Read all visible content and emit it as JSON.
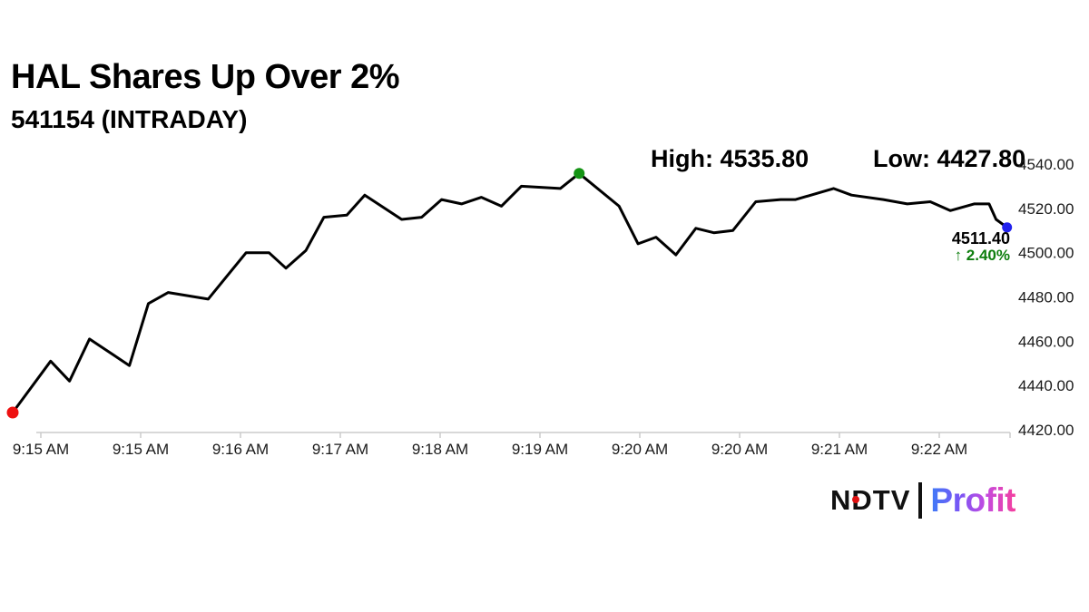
{
  "header": {
    "title": "HAL Shares Up Over 2%",
    "subtitle": "541154 (INTRADAY)"
  },
  "stats": {
    "high": {
      "label": "High:",
      "value": "4535.80"
    },
    "low": {
      "label": "Low:",
      "value": "4427.80"
    }
  },
  "quote": {
    "last_price": "4511.40",
    "change_arrow": "↑",
    "change_percent": "2.40%",
    "change_color": "#0e7e0e"
  },
  "chart_data": {
    "type": "line",
    "title": "HAL Shares Up Over 2%",
    "xlabel": "",
    "ylabel": "",
    "x_tick_labels": [
      "9:15 AM",
      "9:15 AM",
      "9:16 AM",
      "9:17 AM",
      "9:18 AM",
      "9:19 AM",
      "9:20 AM",
      "9:20 AM",
      "9:21 AM",
      "9:22 AM"
    ],
    "y_tick_values": [
      4540,
      4520,
      4500,
      4480,
      4460,
      4440,
      4420
    ],
    "y_tick_labels": [
      "4540.00",
      "4520.00",
      "4500.00",
      "4480.00",
      "4460.00",
      "4440.00",
      "4420.00"
    ],
    "ylim": [
      4420,
      4540
    ],
    "grid": false,
    "legend": false,
    "high": 4535.8,
    "low": 4427.8,
    "last": 4511.4,
    "change_percent": 2.4,
    "line_color": "#000000",
    "axis_color": "#cccccc",
    "series": [
      {
        "name": "541154 intraday price",
        "points": [
          [
            0.0,
            4427.8
          ],
          [
            0.038,
            4451
          ],
          [
            0.057,
            4442
          ],
          [
            0.077,
            4461
          ],
          [
            0.117,
            4449
          ],
          [
            0.136,
            4477
          ],
          [
            0.156,
            4482
          ],
          [
            0.196,
            4479
          ],
          [
            0.234,
            4500
          ],
          [
            0.257,
            4500
          ],
          [
            0.274,
            4493
          ],
          [
            0.294,
            4501
          ],
          [
            0.312,
            4516
          ],
          [
            0.335,
            4517
          ],
          [
            0.353,
            4526
          ],
          [
            0.39,
            4515
          ],
          [
            0.41,
            4516
          ],
          [
            0.43,
            4524
          ],
          [
            0.45,
            4522
          ],
          [
            0.47,
            4525
          ],
          [
            0.49,
            4521
          ],
          [
            0.51,
            4530
          ],
          [
            0.549,
            4529
          ],
          [
            0.568,
            4535.8
          ],
          [
            0.608,
            4521
          ],
          [
            0.627,
            4504
          ],
          [
            0.645,
            4507
          ],
          [
            0.665,
            4499
          ],
          [
            0.685,
            4511
          ],
          [
            0.703,
            4509
          ],
          [
            0.722,
            4510
          ],
          [
            0.745,
            4523
          ],
          [
            0.77,
            4524
          ],
          [
            0.785,
            4524
          ],
          [
            0.823,
            4529
          ],
          [
            0.841,
            4526
          ],
          [
            0.873,
            4524
          ],
          [
            0.897,
            4522
          ],
          [
            0.92,
            4523
          ],
          [
            0.94,
            4519
          ],
          [
            0.964,
            4522
          ],
          [
            0.979,
            4522
          ],
          [
            0.986,
            4515
          ],
          [
            0.997,
            4511.4
          ]
        ]
      }
    ],
    "markers": [
      {
        "name": "session-start-marker",
        "point_index": 0,
        "color": "#ee1111",
        "radius": 6.5
      },
      {
        "name": "session-high-marker",
        "point_index": 23,
        "color": "#149414",
        "radius": 6
      },
      {
        "name": "latest-price-marker",
        "point_index": 43,
        "color": "#2222ee",
        "radius": 5.5
      }
    ]
  },
  "logo": {
    "brand": "NDTV",
    "product": "Profit",
    "dot_color": "#e01212",
    "gradient_start": "#3d7bf7",
    "gradient_end": "#f43f9e"
  }
}
